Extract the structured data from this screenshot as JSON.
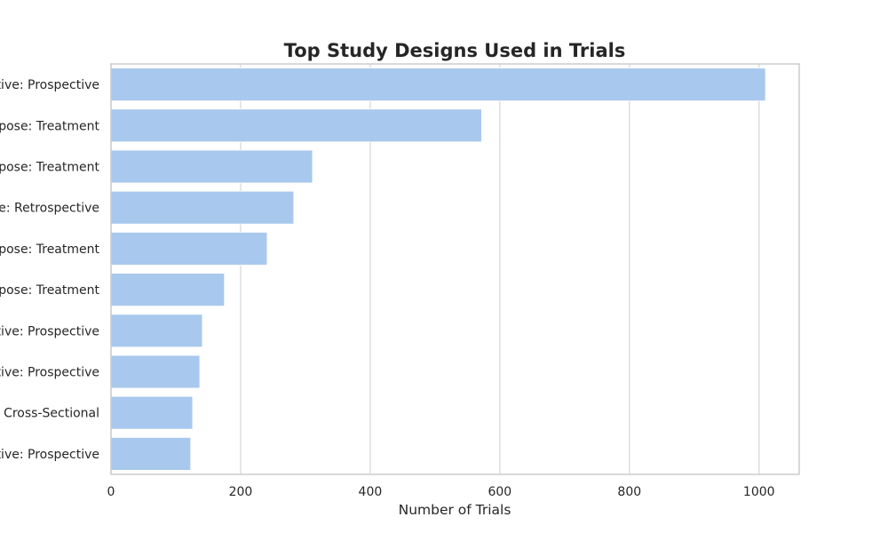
{
  "colors": {
    "bar": "#a8c8ee",
    "bar_edge": "#ffffff",
    "grid": "#d6d6d6",
    "frame": "#cccccc",
    "text": "#262626"
  },
  "chart_data": {
    "type": "bar",
    "orientation": "horizontal",
    "title": "Top Study Designs Used in Trials",
    "xlabel": "Number of Trials",
    "ylabel": "",
    "xlim": [
      0,
      1062
    ],
    "xticks": [
      0,
      200,
      400,
      600,
      800,
      1000
    ],
    "xtick_labels": [
      "0",
      "200",
      "400",
      "600",
      "800",
      "1000"
    ],
    "grid": true,
    "legend": "none",
    "categories": [
      "tive: Prospective",
      "rpose: Treatment",
      "rpose: Treatment",
      "e: Retrospective",
      "rpose: Treatment",
      "rpose: Treatment",
      "tive: Prospective",
      "tive: Prospective",
      "Cross-Sectional",
      "tive: Prospective"
    ],
    "values": [
      1010,
      572,
      311,
      282,
      241,
      175,
      141,
      137,
      126,
      123
    ]
  }
}
